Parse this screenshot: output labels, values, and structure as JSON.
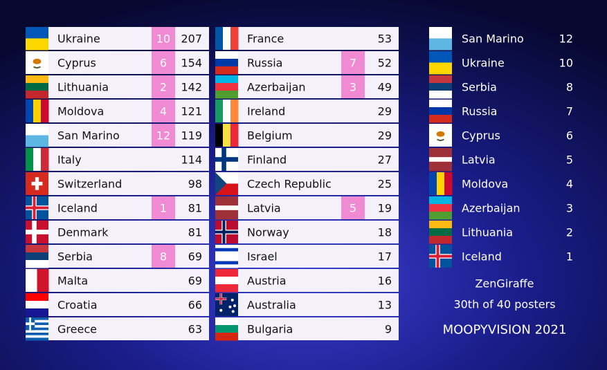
{
  "scoreboard": {
    "columns": [
      {
        "rows": [
          {
            "country": "Ukraine",
            "points": 10,
            "total": 207
          },
          {
            "country": "Cyprus",
            "points": 6,
            "total": 154
          },
          {
            "country": "Lithuania",
            "points": 2,
            "total": 142
          },
          {
            "country": "Moldova",
            "points": 4,
            "total": 121
          },
          {
            "country": "San Marino",
            "points": 12,
            "total": 119
          },
          {
            "country": "Italy",
            "total": 114
          },
          {
            "country": "Switzerland",
            "total": 98
          },
          {
            "country": "Iceland",
            "points": 1,
            "total": 81
          },
          {
            "country": "Denmark",
            "total": 81
          },
          {
            "country": "Serbia",
            "points": 8,
            "total": 69
          },
          {
            "country": "Malta",
            "total": 69
          },
          {
            "country": "Croatia",
            "total": 66
          },
          {
            "country": "Greece",
            "total": 63
          }
        ]
      },
      {
        "rows": [
          {
            "country": "France",
            "total": 53
          },
          {
            "country": "Russia",
            "points": 7,
            "total": 52
          },
          {
            "country": "Azerbaijan",
            "points": 3,
            "total": 49
          },
          {
            "country": "Ireland",
            "total": 29
          },
          {
            "country": "Belgium",
            "total": 29
          },
          {
            "country": "Finland",
            "total": 27
          },
          {
            "country": "Czech Republic",
            "total": 25
          },
          {
            "country": "Latvia",
            "points": 5,
            "total": 19
          },
          {
            "country": "Norway",
            "total": 18
          },
          {
            "country": "Israel",
            "total": 17
          },
          {
            "country": "Austria",
            "total": 16
          },
          {
            "country": "Australia",
            "total": 13
          },
          {
            "country": "Bulgaria",
            "total": 9
          }
        ]
      }
    ]
  },
  "awarded": {
    "rows": [
      {
        "country": "San Marino",
        "points": 12
      },
      {
        "country": "Ukraine",
        "points": 10
      },
      {
        "country": "Serbia",
        "points": 8
      },
      {
        "country": "Russia",
        "points": 7
      },
      {
        "country": "Cyprus",
        "points": 6
      },
      {
        "country": "Latvia",
        "points": 5
      },
      {
        "country": "Moldova",
        "points": 4
      },
      {
        "country": "Azerbaijan",
        "points": 3
      },
      {
        "country": "Lithuania",
        "points": 2
      },
      {
        "country": "Iceland",
        "points": 1
      }
    ]
  },
  "footer": {
    "name": "ZenGiraffe",
    "rank": "30th of 40 posters",
    "event": "MOOPYVISION 2021"
  }
}
